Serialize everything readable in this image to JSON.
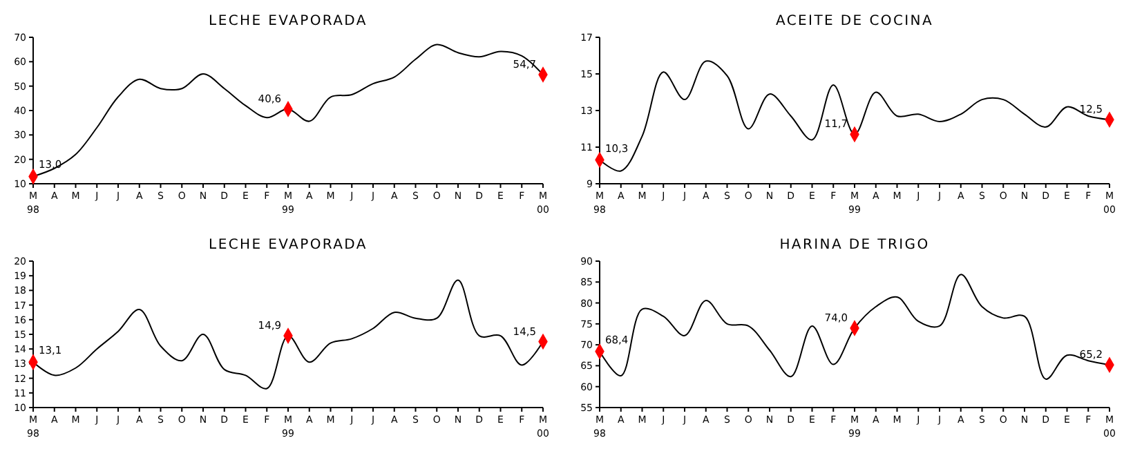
{
  "chart_data": [
    {
      "type": "line",
      "title": "LECHE EVAPORADA",
      "categories": [
        "M\n98",
        "A",
        "M",
        "J",
        "J",
        "A",
        "S",
        "O",
        "N",
        "D",
        "E",
        "F",
        "M\n99",
        "A",
        "M",
        "J",
        "J",
        "A",
        "S",
        "O",
        "N",
        "D",
        "E",
        "F",
        "M\n00"
      ],
      "ylim": [
        10,
        70
      ],
      "yticks": [
        10,
        20,
        30,
        40,
        50,
        60,
        70
      ],
      "marker": "none",
      "series": [
        {
          "color": "#000000",
          "values": [
            13.0,
            16.3,
            22,
            33,
            45.6,
            52.8,
            49,
            49,
            55,
            49,
            42,
            37.1,
            40.6,
            35.6,
            45.5,
            46.5,
            51,
            53.7,
            61,
            67,
            63.7,
            62,
            64.2,
            62.4,
            54.7
          ]
        },
        {
          "type": "scatter",
          "color": "#ff0000",
          "marker": "diamond",
          "values": [
            13.0,
            null,
            null,
            null,
            null,
            null,
            null,
            null,
            null,
            null,
            null,
            null,
            40.6,
            null,
            null,
            null,
            null,
            null,
            null,
            null,
            null,
            null,
            null,
            null,
            54.7
          ],
          "value_labels": [
            "13,0",
            null,
            null,
            null,
            null,
            null,
            null,
            null,
            null,
            null,
            null,
            null,
            "40,6",
            null,
            null,
            null,
            null,
            null,
            null,
            null,
            null,
            null,
            null,
            null,
            "54,7"
          ]
        }
      ]
    },
    {
      "type": "line",
      "title": "ACEITE DE COCINA",
      "categories": [
        "M\n98",
        "A",
        "M",
        "J",
        "J",
        "A",
        "S",
        "O",
        "N",
        "D",
        "E",
        "F",
        "M\n99",
        "A",
        "M",
        "J",
        "J",
        "A",
        "S",
        "O",
        "N",
        "D",
        "E",
        "F",
        "M\n00"
      ],
      "ylim": [
        9,
        17
      ],
      "yticks": [
        9,
        11,
        13,
        15,
        17
      ],
      "marker": "none",
      "series": [
        {
          "color": "#000000",
          "values": [
            10.3,
            9.7,
            11.6,
            15.1,
            13.6,
            15.7,
            14.9,
            12,
            13.9,
            12.7,
            11.4,
            14.4,
            11.7,
            14.0,
            12.7,
            12.8,
            12.4,
            12.8,
            13.6,
            13.6,
            12.8,
            12.1,
            13.2,
            12.7,
            12.5
          ]
        },
        {
          "type": "scatter",
          "color": "#ff0000",
          "marker": "diamond",
          "values": [
            10.3,
            null,
            null,
            null,
            null,
            null,
            null,
            null,
            null,
            null,
            null,
            null,
            11.7,
            null,
            null,
            null,
            null,
            null,
            null,
            null,
            null,
            null,
            null,
            null,
            12.5
          ],
          "value_labels": [
            "10,3",
            null,
            null,
            null,
            null,
            null,
            null,
            null,
            null,
            null,
            null,
            null,
            "11,7",
            null,
            null,
            null,
            null,
            null,
            null,
            null,
            null,
            null,
            null,
            null,
            "12,5"
          ]
        }
      ]
    },
    {
      "type": "line",
      "title": "LECHE EVAPORADA",
      "categories": [
        "M\n98",
        "A",
        "M",
        "J",
        "J",
        "A",
        "S",
        "O",
        "N",
        "D",
        "E",
        "F",
        "M\n99",
        "A",
        "M",
        "J",
        "J",
        "A",
        "S",
        "O",
        "N",
        "D",
        "E",
        "F",
        "M\n00"
      ],
      "ylim": [
        10,
        20
      ],
      "yticks": [
        10,
        11,
        12,
        13,
        14,
        15,
        16,
        17,
        18,
        19,
        20
      ],
      "marker": "none",
      "series": [
        {
          "color": "#000000",
          "values": [
            13.1,
            12.2,
            12.7,
            14.0,
            15.2,
            16.7,
            14.2,
            13.2,
            15.0,
            12.6,
            12.2,
            11.3,
            14.9,
            13.1,
            14.4,
            14.7,
            15.4,
            16.5,
            16.1,
            16.1,
            18.7,
            14.9,
            14.9,
            12.9,
            14.5
          ]
        },
        {
          "type": "scatter",
          "color": "#ff0000",
          "marker": "diamond",
          "values": [
            13.1,
            null,
            null,
            null,
            null,
            null,
            null,
            null,
            null,
            null,
            null,
            null,
            14.9,
            null,
            null,
            null,
            null,
            null,
            null,
            null,
            null,
            null,
            null,
            null,
            14.5
          ],
          "value_labels": [
            "13,1",
            null,
            null,
            null,
            null,
            null,
            null,
            null,
            null,
            null,
            null,
            null,
            "14,9",
            null,
            null,
            null,
            null,
            null,
            null,
            null,
            null,
            null,
            null,
            null,
            "14,5"
          ]
        }
      ]
    },
    {
      "type": "line",
      "title": "HARINA DE TRIGO",
      "categories": [
        "M\n98",
        "A",
        "M",
        "J",
        "J",
        "A",
        "S",
        "O",
        "N",
        "D",
        "E",
        "F",
        "M\n99",
        "A",
        "M",
        "J",
        "J",
        "A",
        "S",
        "O",
        "N",
        "D",
        "E",
        "F",
        "M\n00"
      ],
      "ylim": [
        55,
        90
      ],
      "yticks": [
        55,
        60,
        65,
        70,
        75,
        80,
        85,
        90
      ],
      "marker": "none",
      "series": [
        {
          "color": "#000000",
          "values": [
            68.4,
            62.6,
            78.5,
            76.8,
            72.2,
            80.6,
            75,
            74.5,
            68.7,
            62.4,
            74.5,
            65.3,
            74.0,
            79.1,
            81.4,
            75.6,
            74.5,
            86.8,
            79.1,
            76.4,
            76.8,
            61.8,
            67.5,
            66.2,
            65.2
          ]
        },
        {
          "type": "scatter",
          "color": "#ff0000",
          "marker": "diamond",
          "values": [
            68.4,
            null,
            null,
            null,
            null,
            null,
            null,
            null,
            null,
            null,
            null,
            null,
            74.0,
            null,
            null,
            null,
            null,
            null,
            null,
            null,
            null,
            null,
            null,
            null,
            65.2
          ],
          "value_labels": [
            "68,4",
            null,
            null,
            null,
            null,
            null,
            null,
            null,
            null,
            null,
            null,
            null,
            "74,0",
            null,
            null,
            null,
            null,
            null,
            null,
            null,
            null,
            null,
            null,
            null,
            "65,2"
          ]
        }
      ]
    }
  ]
}
